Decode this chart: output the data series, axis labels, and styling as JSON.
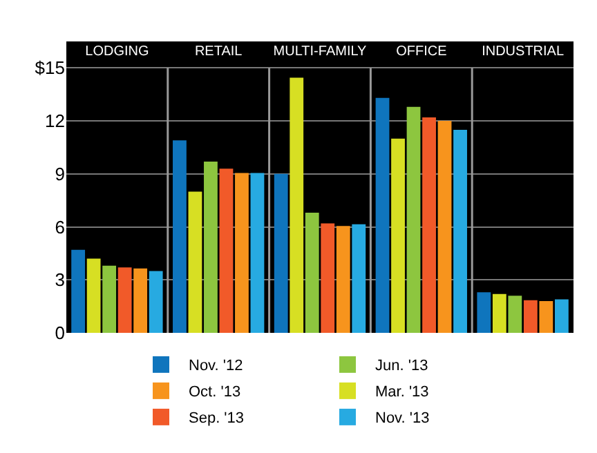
{
  "chart_data": {
    "type": "bar",
    "categories": [
      "LODGING",
      "RETAIL",
      "MULTI-FAMILY",
      "OFFICE",
      "INDUSTRIAL"
    ],
    "series": [
      {
        "name": "Nov. '12",
        "color": "#0f75bd",
        "values": [
          4.7,
          10.9,
          9.0,
          13.3,
          2.3
        ]
      },
      {
        "name": "Mar. '13",
        "color": "#d7df23",
        "values": [
          4.2,
          8.0,
          14.45,
          11.0,
          2.2
        ]
      },
      {
        "name": "Jun. '13",
        "color": "#8dc63f",
        "values": [
          3.8,
          9.7,
          6.8,
          12.8,
          2.1
        ]
      },
      {
        "name": "Sep. '13",
        "color": "#f15a29",
        "values": [
          3.7,
          9.3,
          6.2,
          12.2,
          1.85
        ]
      },
      {
        "name": "Oct. '13",
        "color": "#f7941d",
        "values": [
          3.65,
          9.05,
          6.05,
          12.0,
          1.8
        ]
      },
      {
        "name": "Nov. '13",
        "color": "#27aae1",
        "values": [
          3.5,
          9.05,
          6.15,
          11.5,
          1.9
        ]
      }
    ],
    "ylim": [
      0,
      16.5
    ],
    "yticks": [
      0,
      3,
      6,
      9,
      12,
      {
        "value": 15,
        "label": "$15"
      }
    ],
    "grid": true,
    "legend": "bottom"
  }
}
